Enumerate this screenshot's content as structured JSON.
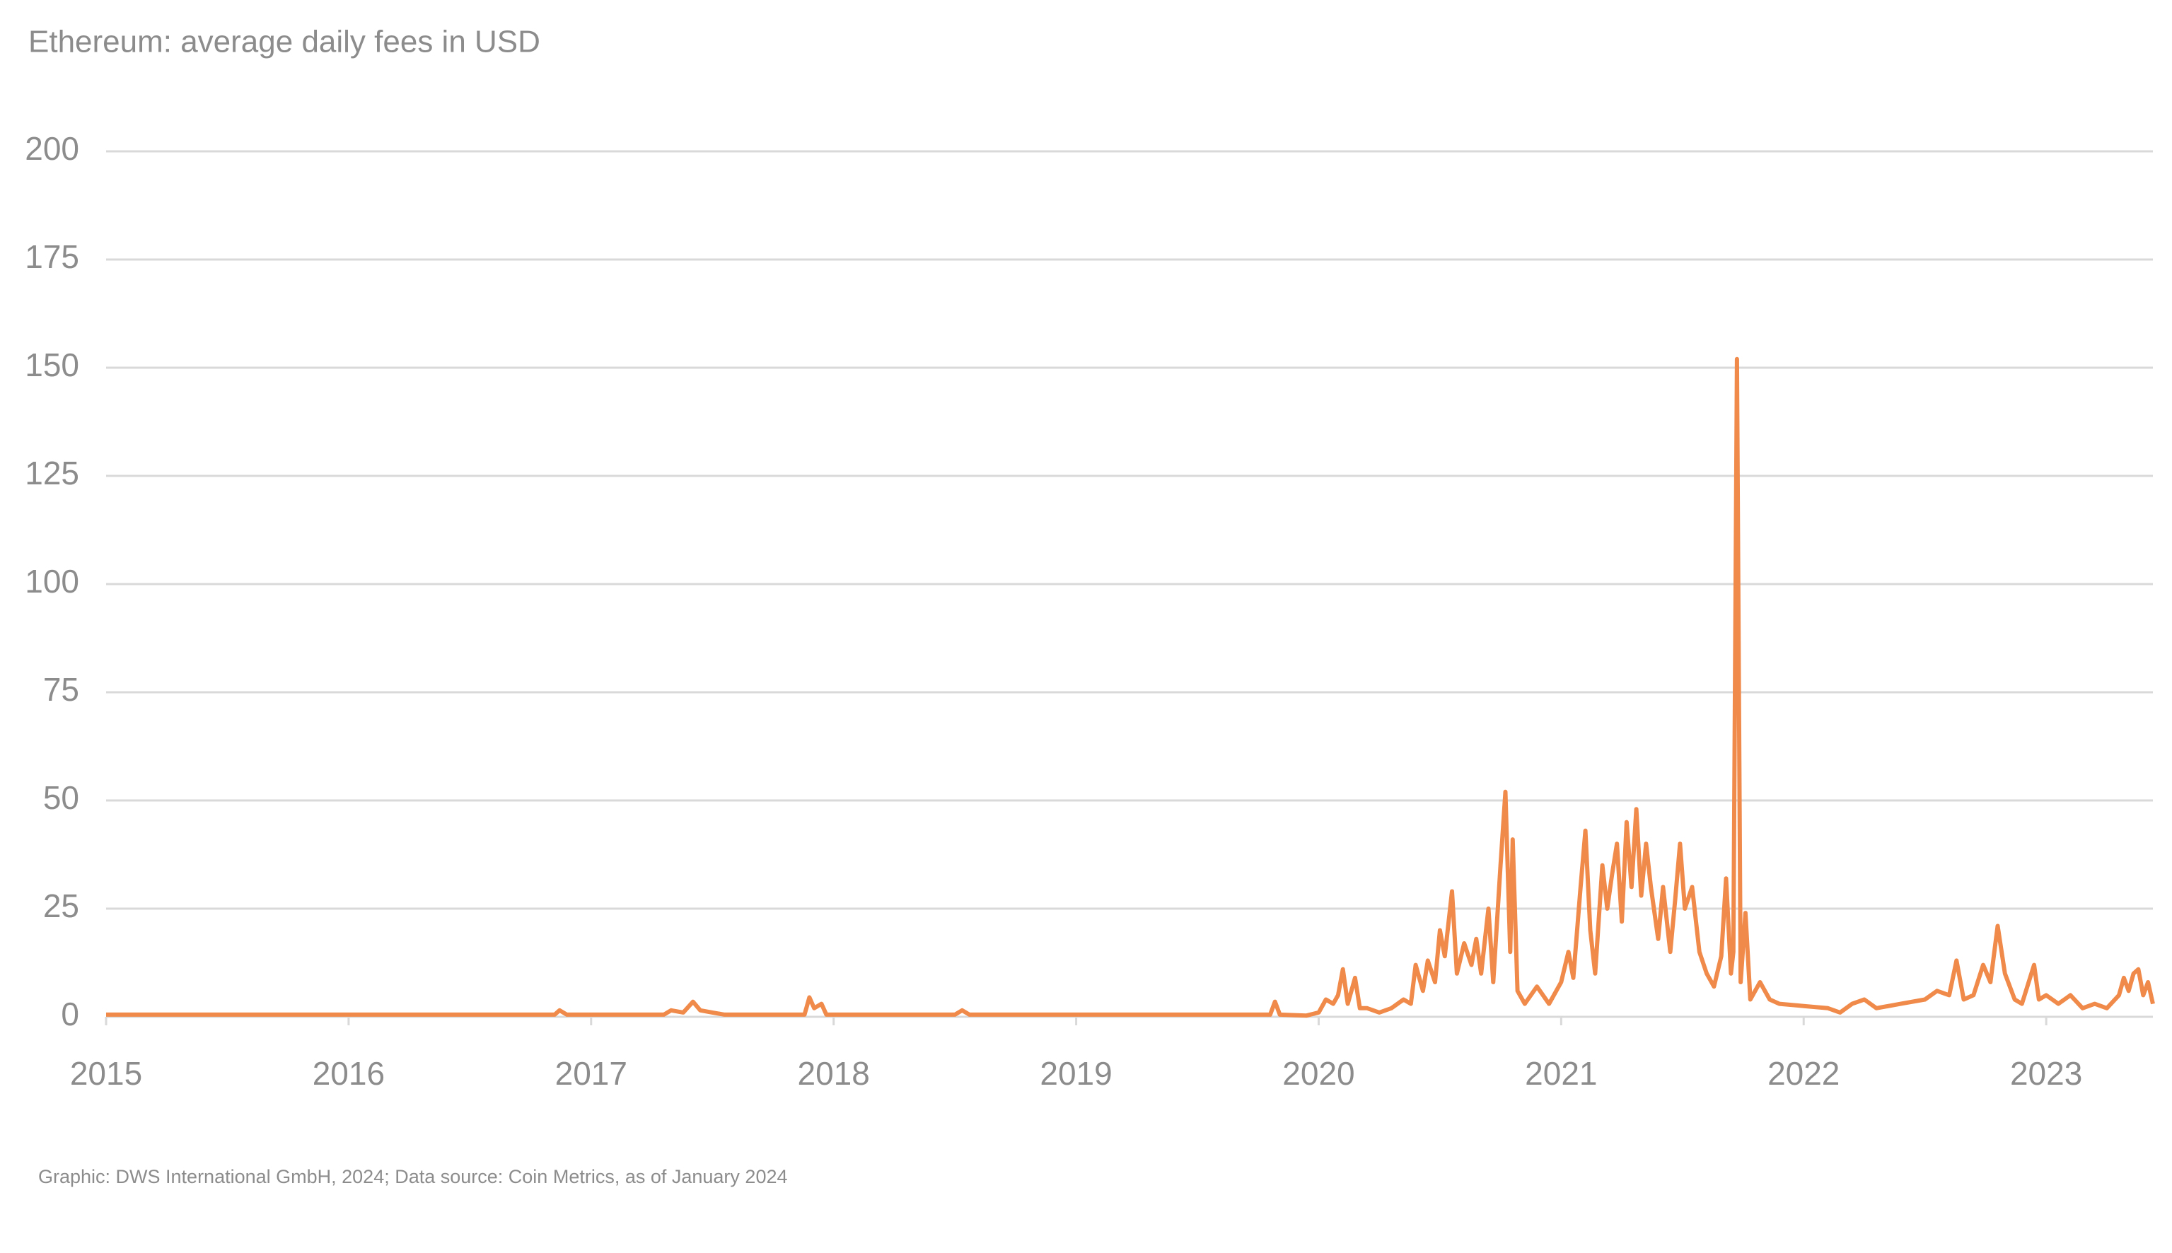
{
  "chart_data": {
    "type": "line",
    "title": "Ethereum: average daily fees in USD",
    "footnote": "Graphic: DWS International GmbH, 2024; Data source: Coin Metrics, as of January 2024",
    "x": [
      2015.0,
      2016.85,
      2016.87,
      2016.9,
      2017.3,
      2017.33,
      2017.38,
      2017.42,
      2017.45,
      2017.5,
      2017.55,
      2017.88,
      2017.9,
      2017.92,
      2017.95,
      2017.97,
      2018.5,
      2018.53,
      2018.56,
      2019.8,
      2019.82,
      2019.84,
      2019.95,
      2020.0,
      2020.03,
      2020.06,
      2020.08,
      2020.1,
      2020.12,
      2020.15,
      2020.17,
      2020.2,
      2020.25,
      2020.3,
      2020.35,
      2020.38,
      2020.4,
      2020.43,
      2020.45,
      2020.48,
      2020.5,
      2020.52,
      2020.55,
      2020.57,
      2020.6,
      2020.63,
      2020.65,
      2020.67,
      2020.7,
      2020.72,
      2020.75,
      2020.77,
      2020.79,
      2020.8,
      2020.82,
      2020.85,
      2020.9,
      2020.95,
      2021.0,
      2021.03,
      2021.05,
      2021.08,
      2021.1,
      2021.12,
      2021.14,
      2021.17,
      2021.19,
      2021.21,
      2021.23,
      2021.25,
      2021.27,
      2021.29,
      2021.31,
      2021.33,
      2021.35,
      2021.37,
      2021.4,
      2021.42,
      2021.45,
      2021.47,
      2021.49,
      2021.51,
      2021.54,
      2021.57,
      2021.6,
      2021.63,
      2021.66,
      2021.68,
      2021.7,
      2021.71,
      2021.725,
      2021.74,
      2021.76,
      2021.78,
      2021.82,
      2021.86,
      2021.9,
      2022.0,
      2022.1,
      2022.15,
      2022.2,
      2022.25,
      2022.3,
      2022.4,
      2022.5,
      2022.55,
      2022.6,
      2022.63,
      2022.66,
      2022.7,
      2022.74,
      2022.77,
      2022.8,
      2022.83,
      2022.87,
      2022.9,
      2022.95,
      2022.97,
      2023.0,
      2023.05,
      2023.1,
      2023.15,
      2023.2,
      2023.25,
      2023.3,
      2023.32,
      2023.34,
      2023.36,
      2023.38,
      2023.4,
      2023.42,
      2023.44
    ],
    "series": [
      {
        "name": "Average daily fees",
        "color": "#f08a4b",
        "values": [
          0.5,
          0.5,
          1.5,
          0.5,
          0.5,
          1.5,
          1,
          3.5,
          1.5,
          1,
          0.5,
          0.5,
          4.5,
          2,
          3,
          0.5,
          0.5,
          1.5,
          0.5,
          0.5,
          3.5,
          0.5,
          0.3,
          1,
          4,
          3,
          5,
          11,
          3,
          9,
          2,
          2,
          1,
          2,
          4,
          3,
          12,
          6,
          13,
          8,
          20,
          14,
          29,
          10,
          17,
          12,
          18,
          10,
          25,
          8,
          35,
          52,
          15,
          41,
          6,
          3,
          7,
          3,
          8,
          15,
          9,
          30,
          43,
          20,
          10,
          35,
          25,
          33,
          40,
          22,
          45,
          30,
          48,
          28,
          40,
          30,
          18,
          30,
          15,
          27,
          40,
          25,
          30,
          15,
          10,
          7,
          14,
          32,
          10,
          15,
          152,
          8,
          24,
          4,
          8,
          4,
          3,
          2.5,
          2,
          1,
          3,
          4,
          2,
          3,
          4,
          6,
          5,
          13,
          4,
          5,
          12,
          8,
          21,
          10,
          4,
          3,
          12,
          4,
          5,
          3,
          5,
          2,
          3,
          2,
          5,
          9,
          6,
          10,
          11,
          5,
          8,
          3
        ]
      }
    ],
    "xlim": [
      2015,
      2023.44
    ],
    "xticks": [
      2015,
      2016,
      2017,
      2018,
      2019,
      2020,
      2021,
      2022,
      2023
    ],
    "ylim": [
      0,
      200
    ],
    "yticks": [
      0,
      25,
      50,
      75,
      100,
      125,
      150,
      175,
      200
    ],
    "grid": true
  }
}
